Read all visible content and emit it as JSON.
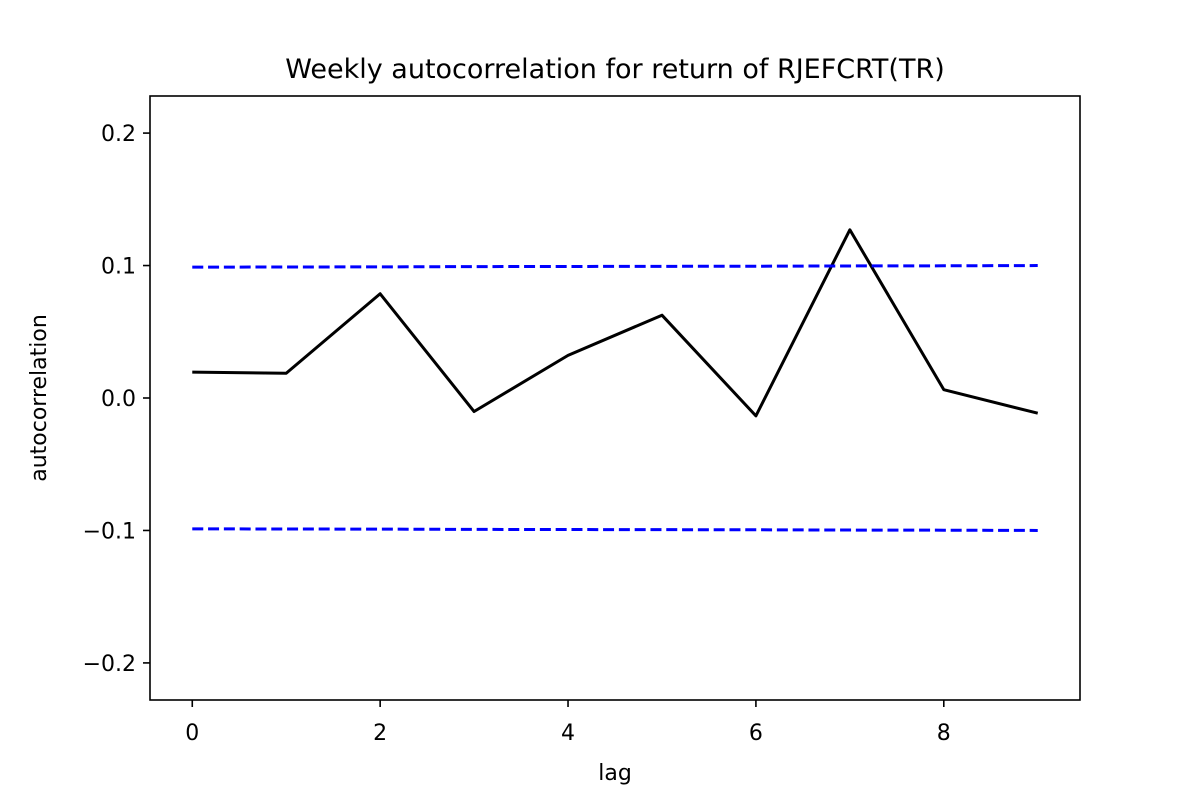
{
  "chart_data": {
    "type": "line",
    "title": "Weekly autocorrelation for  return of RJEFCRT(TR)",
    "xlabel": "lag",
    "ylabel": "autocorrelation",
    "xlim": [
      -0.45,
      9.45
    ],
    "ylim": [
      -0.228,
      0.228
    ],
    "xticks": [
      0,
      2,
      4,
      6,
      8
    ],
    "yticks": [
      0.2,
      0.1,
      0.0,
      -0.1,
      -0.2
    ],
    "xtick_labels": [
      "0",
      "2",
      "4",
      "6",
      "8"
    ],
    "ytick_labels": [
      "0.2",
      "0.1",
      "0.0",
      "−0.1",
      "−0.2"
    ],
    "grid": false,
    "legend": "none",
    "series": [
      {
        "style": "solid",
        "color": "#000000",
        "x": [
          0,
          1,
          2,
          3,
          4,
          5,
          6,
          7,
          8,
          9
        ],
        "y": [
          0.0195,
          0.0187,
          0.0787,
          -0.0102,
          0.0322,
          0.0625,
          -0.0135,
          0.127,
          0.0063,
          -0.0115
        ]
      },
      {
        "style": "dashed",
        "color": "#0000ff",
        "x": [
          0,
          1,
          2,
          3,
          4,
          5,
          6,
          7,
          8,
          9
        ],
        "y": [
          0.0988,
          0.0989,
          0.099,
          0.0992,
          0.0993,
          0.0994,
          0.0995,
          0.0997,
          0.0998,
          0.1
        ]
      },
      {
        "style": "dashed",
        "color": "#0000ff",
        "x": [
          0,
          1,
          2,
          3,
          4,
          5,
          6,
          7,
          8,
          9
        ],
        "y": [
          -0.0988,
          -0.0989,
          -0.099,
          -0.0992,
          -0.0993,
          -0.0994,
          -0.0995,
          -0.0997,
          -0.0998,
          -0.1
        ]
      }
    ]
  }
}
